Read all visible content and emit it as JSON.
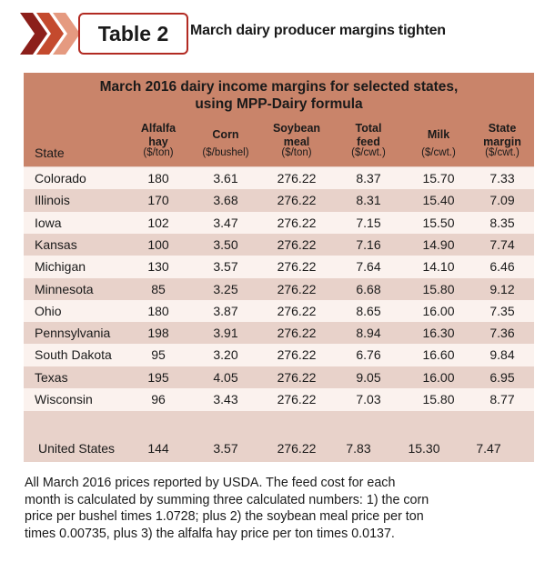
{
  "header": {
    "badge": "Table 2",
    "subtitle": "March dairy producer margins tighten"
  },
  "colors": {
    "accent_red": "#b22a22",
    "header_fill": "#c9846a",
    "row_light": "#fbf2ee",
    "row_dark": "#e8d2ca"
  },
  "table": {
    "caption_line1": "March 2016 dairy income margins for selected states,",
    "caption_line2": "using MPP-Dairy formula",
    "state_header": "State",
    "columns": [
      {
        "name1": "Alfalfa",
        "name2": "hay",
        "unit": "($/ton)"
      },
      {
        "name1": "Corn",
        "name2": "",
        "unit": "($/bushel)"
      },
      {
        "name1": "Soybean",
        "name2": "meal",
        "unit": "($/ton)"
      },
      {
        "name1": "Total",
        "name2": "feed",
        "unit": "($/cwt.)"
      },
      {
        "name1": "Milk",
        "name2": "",
        "unit": "($/cwt.)"
      },
      {
        "name1": "State",
        "name2": "margin",
        "unit": "($/cwt.)"
      }
    ],
    "rows": [
      {
        "state": "Colorado",
        "hay": "180",
        "corn": "3.61",
        "soy": "276.22",
        "feed": "8.37",
        "milk": "15.70",
        "margin": "7.33"
      },
      {
        "state": "Illinois",
        "hay": "170",
        "corn": "3.68",
        "soy": "276.22",
        "feed": "8.31",
        "milk": "15.40",
        "margin": "7.09"
      },
      {
        "state": "Iowa",
        "hay": "102",
        "corn": "3.47",
        "soy": "276.22",
        "feed": "7.15",
        "milk": "15.50",
        "margin": "8.35"
      },
      {
        "state": "Kansas",
        "hay": "100",
        "corn": "3.50",
        "soy": "276.22",
        "feed": "7.16",
        "milk": "14.90",
        "margin": "7.74"
      },
      {
        "state": "Michigan",
        "hay": "130",
        "corn": "3.57",
        "soy": "276.22",
        "feed": "7.64",
        "milk": "14.10",
        "margin": "6.46"
      },
      {
        "state": "Minnesota",
        "hay": "85",
        "corn": "3.25",
        "soy": "276.22",
        "feed": "6.68",
        "milk": "15.80",
        "margin": "9.12"
      },
      {
        "state": "Ohio",
        "hay": "180",
        "corn": "3.87",
        "soy": "276.22",
        "feed": "8.65",
        "milk": "16.00",
        "margin": "7.35"
      },
      {
        "state": "Pennsylvania",
        "hay": "198",
        "corn": "3.91",
        "soy": "276.22",
        "feed": "8.94",
        "milk": "16.30",
        "margin": "7.36"
      },
      {
        "state": "South Dakota",
        "hay": "95",
        "corn": "3.20",
        "soy": "276.22",
        "feed": "6.76",
        "milk": "16.60",
        "margin": "9.84"
      },
      {
        "state": "Texas",
        "hay": "195",
        "corn": "4.05",
        "soy": "276.22",
        "feed": "9.05",
        "milk": "16.00",
        "margin": "6.95"
      },
      {
        "state": "Wisconsin",
        "hay": "96",
        "corn": "3.43",
        "soy": "276.22",
        "feed": "7.03",
        "milk": "15.80",
        "margin": "8.77"
      }
    ],
    "total_row": {
      "state": "United States",
      "hay": "144",
      "corn": "3.57",
      "soy": "276.22",
      "feed": "7.83",
      "milk": "15.30",
      "margin": "7.47"
    }
  },
  "footnote": {
    "line1": "All March 2016 prices reported by USDA. The feed cost for each",
    "line2": "month is calculated by summing three calculated numbers: 1) the corn",
    "line3": "price per bushel times 1.0728; plus 2) the soybean meal price per ton",
    "line4": "times 0.00735, plus 3) the alfalfa hay price per ton times 0.0137."
  }
}
